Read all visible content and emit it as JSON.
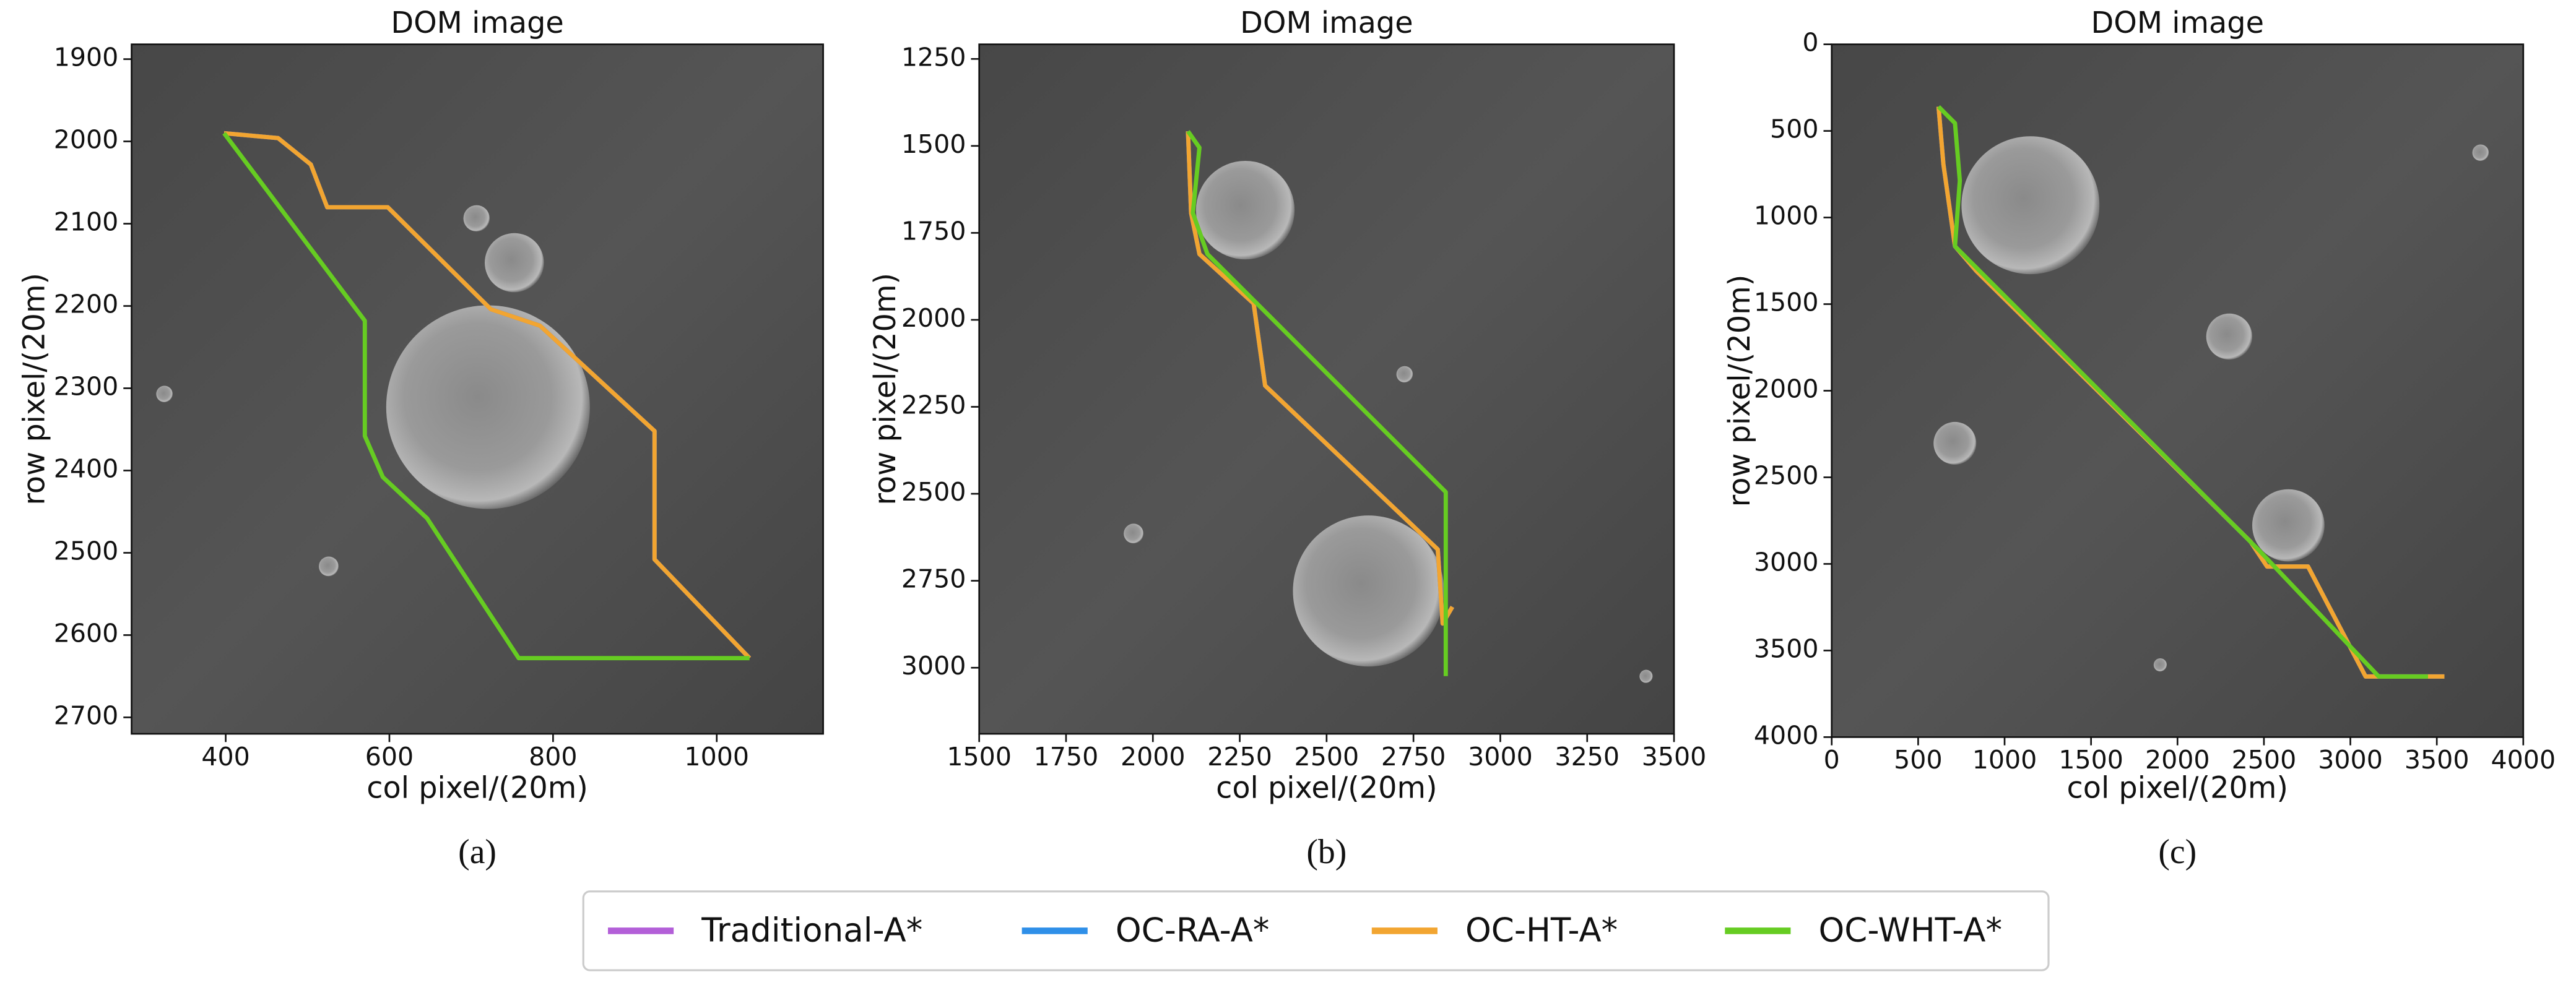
{
  "chart_data": [
    {
      "type": "line",
      "title": "DOM image",
      "xlabel": "col pixel/(20m)",
      "ylabel": "row pixel/(20m)",
      "caption": "(a)",
      "xlim": [
        285,
        1130
      ],
      "ylim": [
        2720,
        1882
      ],
      "xticks": [
        400,
        600,
        800,
        1000
      ],
      "yticks": [
        1900,
        2000,
        2100,
        2200,
        2300,
        2400,
        2500,
        2600,
        2700
      ],
      "series": [
        {
          "name": "Traditional-A*",
          "color": "#b35fd8",
          "x": [
            398,
            464,
            504,
            524,
            598,
            724,
            784,
            924,
            924,
            1040
          ],
          "values": [
            1990,
            1996,
            2028,
            2080,
            2080,
            2204,
            2224,
            2352,
            2508,
            2628
          ]
        },
        {
          "name": "OC-RA-A*",
          "color": "#2f8fe8",
          "x": [
            398,
            464,
            504,
            524,
            598,
            724,
            784,
            924,
            924,
            1040
          ],
          "values": [
            1990,
            1996,
            2028,
            2080,
            2080,
            2204,
            2224,
            2352,
            2508,
            2628
          ]
        },
        {
          "name": "OC-HT-A*",
          "color": "#f2a531",
          "x": [
            398,
            464,
            504,
            524,
            598,
            724,
            784,
            924,
            924,
            1040
          ],
          "values": [
            1990,
            1996,
            2028,
            2080,
            2080,
            2204,
            2224,
            2352,
            2508,
            2628
          ]
        },
        {
          "name": "OC-WHT-A*",
          "color": "#66cc22",
          "x": [
            398,
            570,
            570,
            592,
            646,
            758,
            1040
          ],
          "values": [
            1990,
            2218,
            2358,
            2408,
            2458,
            2628,
            2628
          ]
        }
      ]
    },
    {
      "type": "line",
      "title": "DOM image",
      "xlabel": "col pixel/(20m)",
      "ylabel": "row pixel/(20m)",
      "caption": "(b)",
      "xlim": [
        1500,
        3500
      ],
      "ylim": [
        3190,
        1208
      ],
      "xticks": [
        1500,
        1750,
        2000,
        2250,
        2500,
        2750,
        3000,
        3250,
        3500
      ],
      "yticks": [
        1250,
        1500,
        1750,
        2000,
        2250,
        2500,
        2750,
        3000
      ],
      "series": [
        {
          "name": "Traditional-A*",
          "color": "#b35fd8",
          "x": [
            2101,
            2110,
            2134,
            2290,
            2323,
            2820,
            2834,
            2862
          ],
          "values": [
            1458,
            1693,
            1811,
            1953,
            2189,
            2660,
            2873,
            2825
          ]
        },
        {
          "name": "OC-RA-A*",
          "color": "#2f8fe8",
          "x": [
            2101,
            2110,
            2134,
            2290,
            2323,
            2820,
            2834,
            2862
          ],
          "values": [
            1458,
            1693,
            1811,
            1953,
            2189,
            2660,
            2873,
            2825
          ]
        },
        {
          "name": "OC-HT-A*",
          "color": "#f2a531",
          "x": [
            2101,
            2110,
            2134,
            2290,
            2323,
            2820,
            2834,
            2862
          ],
          "values": [
            1458,
            1693,
            1811,
            1953,
            2189,
            2660,
            2873,
            2825
          ]
        },
        {
          "name": "OC-WHT-A*",
          "color": "#66cc22",
          "x": [
            2101,
            2134,
            2115,
            2157,
            2843,
            2843
          ],
          "values": [
            1458,
            1505,
            1693,
            1811,
            2495,
            3024
          ]
        }
      ]
    },
    {
      "type": "line",
      "title": "DOM image",
      "xlabel": "col pixel/(20m)",
      "ylabel": "row pixel/(20m)",
      "caption": "(c)",
      "xlim": [
        0,
        4000
      ],
      "ylim": [
        4000,
        0
      ],
      "xticks": [
        0,
        500,
        1000,
        1500,
        2000,
        2500,
        3000,
        3500,
        4000
      ],
      "yticks": [
        0,
        500,
        1000,
        1500,
        2000,
        2500,
        3000,
        3500,
        4000
      ],
      "series": [
        {
          "name": "Traditional-A*",
          "color": "#b35fd8",
          "x": [
            618,
            646,
            713,
            836,
            2423,
            2518,
            2755,
            3088,
            3544
          ],
          "values": [
            360,
            692,
            1166,
            1308,
            2872,
            3015,
            3015,
            3650,
            3650
          ]
        },
        {
          "name": "OC-RA-A*",
          "color": "#2f8fe8",
          "x": [
            618,
            646,
            713,
            836,
            2423,
            2518,
            2755,
            3088,
            3544
          ],
          "values": [
            360,
            692,
            1166,
            1308,
            2872,
            3015,
            3015,
            3650,
            3650
          ]
        },
        {
          "name": "OC-HT-A*",
          "color": "#f2a531",
          "x": [
            618,
            646,
            713,
            836,
            2423,
            2518,
            2755,
            3088,
            3544
          ],
          "values": [
            360,
            692,
            1166,
            1308,
            2872,
            3015,
            3015,
            3650,
            3650
          ]
        },
        {
          "name": "OC-WHT-A*",
          "color": "#66cc22",
          "x": [
            618,
            713,
            741,
            713,
            836,
            2470,
            3164,
            3449
          ],
          "values": [
            360,
            455,
            787,
            1166,
            1289,
            2920,
            3650,
            3650
          ]
        }
      ]
    }
  ]
}
